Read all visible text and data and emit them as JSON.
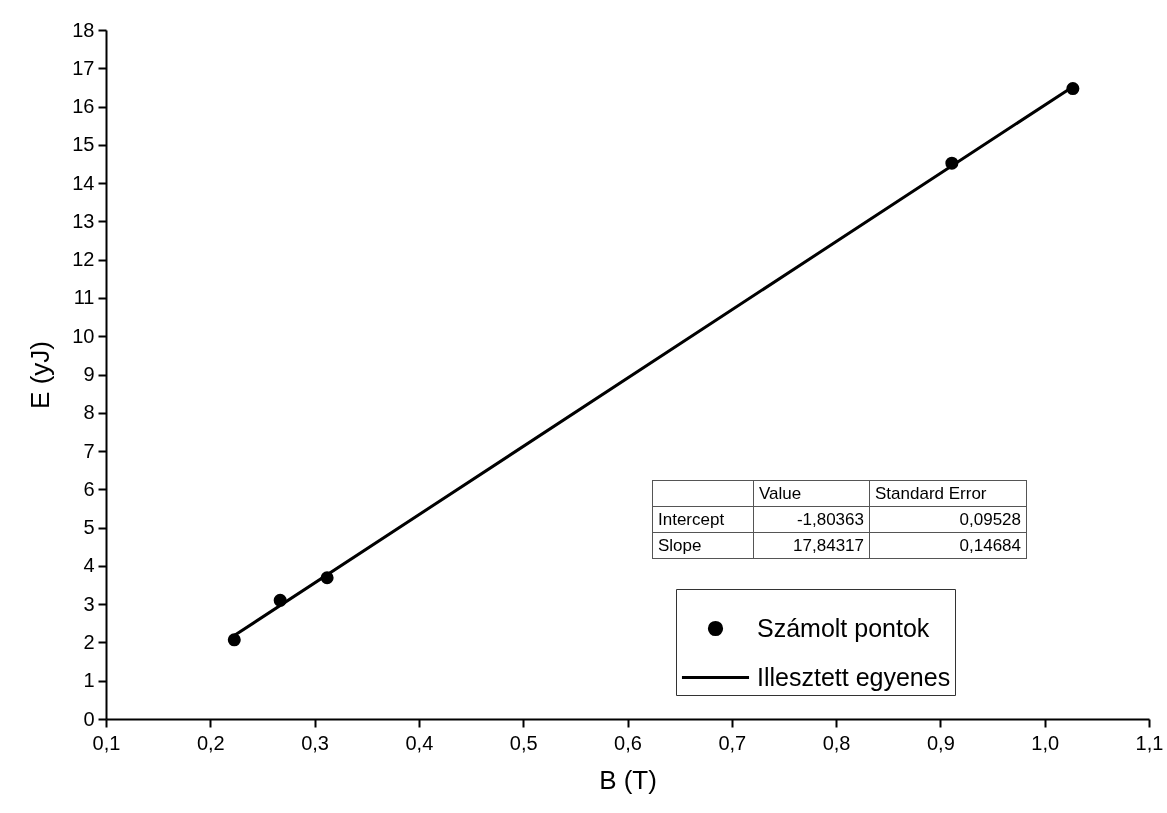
{
  "chart_data": {
    "type": "scatter",
    "xlabel": "B (T)",
    "ylabel": "E (yJ)",
    "xlim": [
      0.1,
      1.1
    ],
    "xticks": [
      {
        "value": 0.1,
        "label": "0,1"
      },
      {
        "value": 0.2,
        "label": "0,2"
      },
      {
        "value": 0.3,
        "label": "0,3"
      },
      {
        "value": 0.4,
        "label": "0,4"
      },
      {
        "value": 0.5,
        "label": "0,5"
      },
      {
        "value": 0.6,
        "label": "0,6"
      },
      {
        "value": 0.7,
        "label": "0,7"
      },
      {
        "value": 0.8,
        "label": "0,8"
      },
      {
        "value": 0.9,
        "label": "0,9"
      },
      {
        "value": 1.0,
        "label": "1,0"
      },
      {
        "value": 1.1,
        "label": "1,1"
      }
    ],
    "ylim": [
      0,
      18
    ],
    "yticks": [
      0,
      1,
      2,
      3,
      4,
      5,
      6,
      7,
      8,
      9,
      10,
      11,
      12,
      13,
      14,
      15,
      16,
      17,
      18
    ],
    "grid": false,
    "legend": "bottom right",
    "line_style": "solid",
    "series": [
      {
        "name": "Számolt pontok",
        "marker": "circle",
        "color": "#000000",
        "x": [
          0.223,
          0.267,
          0.312,
          0.911,
          1.027
        ],
        "values": [
          2.07,
          3.1,
          3.69,
          14.52,
          16.47
        ]
      },
      {
        "name": "Illesztett egyenes",
        "type": "line",
        "marker": "none",
        "color": "#000000",
        "x": [
          0.223,
          1.027
        ],
        "values": [
          2.18,
          16.52
        ]
      }
    ],
    "annotations": [
      "Value",
      "Standard Error",
      "Intercept",
      "-1,80363",
      "0,09528",
      "Slope",
      "17,84317",
      "0,14684"
    ]
  }
}
